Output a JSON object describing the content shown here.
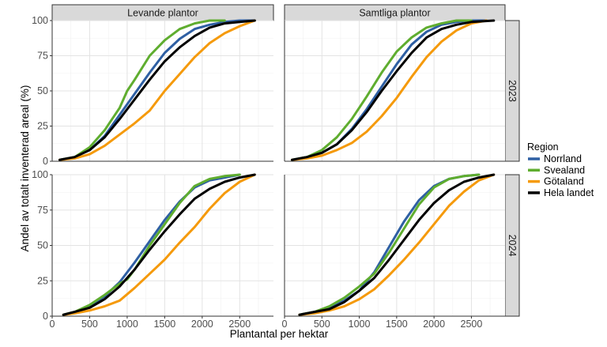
{
  "chart_data": {
    "type": "line",
    "xlabel": "Plantantal per hektar",
    "ylabel": "Andel av totalt inventerad areal (%)",
    "xlim": [
      0,
      2950
    ],
    "ylim": [
      0,
      100
    ],
    "x_ticks": [
      0,
      500,
      1000,
      1500,
      2000,
      2500
    ],
    "y_ticks": [
      0,
      25,
      50,
      75,
      100
    ],
    "grid": true,
    "columns": [
      "Levande plantor",
      "Samtliga plantor"
    ],
    "rows": [
      "2023",
      "2024"
    ],
    "legend": {
      "title": "Region",
      "position": "right",
      "entries": [
        {
          "name": "Norrland",
          "color": "#2e5fa3"
        },
        {
          "name": "Svealand",
          "color": "#5fad2f"
        },
        {
          "name": "Götaland",
          "color": "#f59a0c"
        },
        {
          "name": "Hela landet",
          "color": "#000000"
        }
      ]
    },
    "panels": [
      {
        "column": "Levande plantor",
        "row": "2023",
        "series": [
          {
            "name": "Norrland",
            "points": [
              [
                100,
                1
              ],
              [
                300,
                3
              ],
              [
                500,
                8
              ],
              [
                700,
                18
              ],
              [
                900,
                33
              ],
              [
                1100,
                48
              ],
              [
                1300,
                63
              ],
              [
                1500,
                77
              ],
              [
                1700,
                87
              ],
              [
                1900,
                94
              ],
              [
                2100,
                97
              ],
              [
                2300,
                99
              ],
              [
                2500,
                100
              ],
              [
                2700,
                100
              ]
            ]
          },
          {
            "name": "Svealand",
            "points": [
              [
                100,
                1
              ],
              [
                300,
                3
              ],
              [
                500,
                10
              ],
              [
                700,
                22
              ],
              [
                800,
                30
              ],
              [
                900,
                38
              ],
              [
                1000,
                50
              ],
              [
                1100,
                58
              ],
              [
                1300,
                75
              ],
              [
                1500,
                86
              ],
              [
                1700,
                94
              ],
              [
                1900,
                98
              ],
              [
                2100,
                100
              ],
              [
                2300,
                100
              ]
            ]
          },
          {
            "name": "Götaland",
            "points": [
              [
                100,
                1
              ],
              [
                300,
                2
              ],
              [
                500,
                5
              ],
              [
                700,
                11
              ],
              [
                900,
                19
              ],
              [
                1100,
                27
              ],
              [
                1300,
                36
              ],
              [
                1500,
                50
              ],
              [
                1700,
                62
              ],
              [
                1900,
                74
              ],
              [
                2100,
                84
              ],
              [
                2300,
                91
              ],
              [
                2500,
                96
              ],
              [
                2700,
                100
              ]
            ]
          },
          {
            "name": "Hela landet",
            "points": [
              [
                100,
                1
              ],
              [
                300,
                3
              ],
              [
                500,
                8
              ],
              [
                700,
                17
              ],
              [
                900,
                30
              ],
              [
                1100,
                44
              ],
              [
                1300,
                58
              ],
              [
                1500,
                71
              ],
              [
                1700,
                81
              ],
              [
                1900,
                89
              ],
              [
                2100,
                95
              ],
              [
                2300,
                98
              ],
              [
                2500,
                99
              ],
              [
                2700,
                100
              ]
            ]
          }
        ]
      },
      {
        "column": "Samtliga plantor",
        "row": "2023",
        "series": [
          {
            "name": "Norrland",
            "points": [
              [
                100,
                1
              ],
              [
                300,
                3
              ],
              [
                500,
                6
              ],
              [
                700,
                12
              ],
              [
                900,
                23
              ],
              [
                1100,
                37
              ],
              [
                1300,
                53
              ],
              [
                1500,
                69
              ],
              [
                1700,
                83
              ],
              [
                1900,
                92
              ],
              [
                2100,
                97
              ],
              [
                2300,
                99
              ],
              [
                2500,
                100
              ],
              [
                2700,
                100
              ]
            ]
          },
          {
            "name": "Svealand",
            "points": [
              [
                100,
                1
              ],
              [
                300,
                3
              ],
              [
                500,
                8
              ],
              [
                700,
                17
              ],
              [
                900,
                30
              ],
              [
                1100,
                46
              ],
              [
                1300,
                63
              ],
              [
                1500,
                78
              ],
              [
                1700,
                88
              ],
              [
                1900,
                95
              ],
              [
                2100,
                98
              ],
              [
                2300,
                100
              ],
              [
                2500,
                100
              ]
            ]
          },
          {
            "name": "Götaland",
            "points": [
              [
                100,
                1
              ],
              [
                300,
                2
              ],
              [
                500,
                4
              ],
              [
                700,
                8
              ],
              [
                900,
                13
              ],
              [
                1100,
                21
              ],
              [
                1300,
                32
              ],
              [
                1500,
                45
              ],
              [
                1700,
                60
              ],
              [
                1900,
                74
              ],
              [
                2100,
                85
              ],
              [
                2300,
                93
              ],
              [
                2500,
                98
              ],
              [
                2700,
                100
              ]
            ]
          },
          {
            "name": "Hela landet",
            "points": [
              [
                100,
                1
              ],
              [
                300,
                3
              ],
              [
                500,
                6
              ],
              [
                700,
                12
              ],
              [
                900,
                22
              ],
              [
                1100,
                35
              ],
              [
                1300,
                50
              ],
              [
                1500,
                64
              ],
              [
                1700,
                77
              ],
              [
                1900,
                88
              ],
              [
                2100,
                94
              ],
              [
                2300,
                97
              ],
              [
                2500,
                99
              ],
              [
                2800,
                100
              ]
            ]
          }
        ]
      },
      {
        "column": "Levande plantor",
        "row": "2024",
        "series": [
          {
            "name": "Norrland",
            "points": [
              [
                150,
                1
              ],
              [
                300,
                3
              ],
              [
                500,
                7
              ],
              [
                700,
                14
              ],
              [
                900,
                24
              ],
              [
                1100,
                38
              ],
              [
                1300,
                53
              ],
              [
                1500,
                68
              ],
              [
                1700,
                81
              ],
              [
                1900,
                91
              ],
              [
                2100,
                96
              ],
              [
                2300,
                98
              ],
              [
                2500,
                100
              ]
            ]
          },
          {
            "name": "Svealand",
            "points": [
              [
                150,
                1
              ],
              [
                300,
                3
              ],
              [
                500,
                8
              ],
              [
                700,
                15
              ],
              [
                900,
                23
              ],
              [
                1000,
                26
              ],
              [
                1100,
                33
              ],
              [
                1300,
                50
              ],
              [
                1500,
                65
              ],
              [
                1700,
                80
              ],
              [
                1900,
                92
              ],
              [
                2100,
                97
              ],
              [
                2300,
                99
              ],
              [
                2500,
                100
              ]
            ]
          },
          {
            "name": "Götaland",
            "points": [
              [
                150,
                1
              ],
              [
                300,
                2
              ],
              [
                500,
                4
              ],
              [
                700,
                7
              ],
              [
                900,
                11
              ],
              [
                1100,
                20
              ],
              [
                1300,
                30
              ],
              [
                1500,
                40
              ],
              [
                1700,
                52
              ],
              [
                1900,
                63
              ],
              [
                2100,
                76
              ],
              [
                2300,
                87
              ],
              [
                2500,
                95
              ],
              [
                2700,
                100
              ]
            ]
          },
          {
            "name": "Hela landet",
            "points": [
              [
                150,
                1
              ],
              [
                300,
                3
              ],
              [
                500,
                6
              ],
              [
                700,
                12
              ],
              [
                900,
                21
              ],
              [
                1100,
                33
              ],
              [
                1300,
                47
              ],
              [
                1500,
                60
              ],
              [
                1700,
                72
              ],
              [
                1900,
                83
              ],
              [
                2100,
                90
              ],
              [
                2300,
                95
              ],
              [
                2500,
                98
              ],
              [
                2700,
                100
              ]
            ]
          }
        ]
      },
      {
        "column": "Samtliga plantor",
        "row": "2024",
        "series": [
          {
            "name": "Norrland",
            "points": [
              [
                200,
                1
              ],
              [
                400,
                3
              ],
              [
                600,
                6
              ],
              [
                800,
                11
              ],
              [
                1000,
                18
              ],
              [
                1200,
                31
              ],
              [
                1400,
                49
              ],
              [
                1600,
                67
              ],
              [
                1800,
                82
              ],
              [
                2000,
                92
              ],
              [
                2200,
                97
              ],
              [
                2400,
                99
              ],
              [
                2600,
                100
              ]
            ]
          },
          {
            "name": "Svealand",
            "points": [
              [
                200,
                1
              ],
              [
                400,
                3
              ],
              [
                600,
                7
              ],
              [
                800,
                13
              ],
              [
                1000,
                21
              ],
              [
                1200,
                30
              ],
              [
                1400,
                45
              ],
              [
                1600,
                62
              ],
              [
                1800,
                79
              ],
              [
                2000,
                91
              ],
              [
                2200,
                97
              ],
              [
                2400,
                99
              ],
              [
                2600,
                100
              ]
            ]
          },
          {
            "name": "Götaland",
            "points": [
              [
                200,
                1
              ],
              [
                400,
                2
              ],
              [
                600,
                4
              ],
              [
                800,
                7
              ],
              [
                1000,
                12
              ],
              [
                1200,
                19
              ],
              [
                1400,
                29
              ],
              [
                1600,
                40
              ],
              [
                1800,
                52
              ],
              [
                2000,
                65
              ],
              [
                2200,
                78
              ],
              [
                2400,
                88
              ],
              [
                2600,
                96
              ],
              [
                2800,
                100
              ]
            ]
          },
          {
            "name": "Hela landet",
            "points": [
              [
                200,
                1
              ],
              [
                400,
                3
              ],
              [
                600,
                5
              ],
              [
                800,
                10
              ],
              [
                1000,
                18
              ],
              [
                1200,
                27
              ],
              [
                1400,
                40
              ],
              [
                1600,
                54
              ],
              [
                1800,
                68
              ],
              [
                2000,
                80
              ],
              [
                2200,
                89
              ],
              [
                2400,
                95
              ],
              [
                2600,
                98
              ],
              [
                2800,
                100
              ]
            ]
          }
        ]
      }
    ]
  }
}
